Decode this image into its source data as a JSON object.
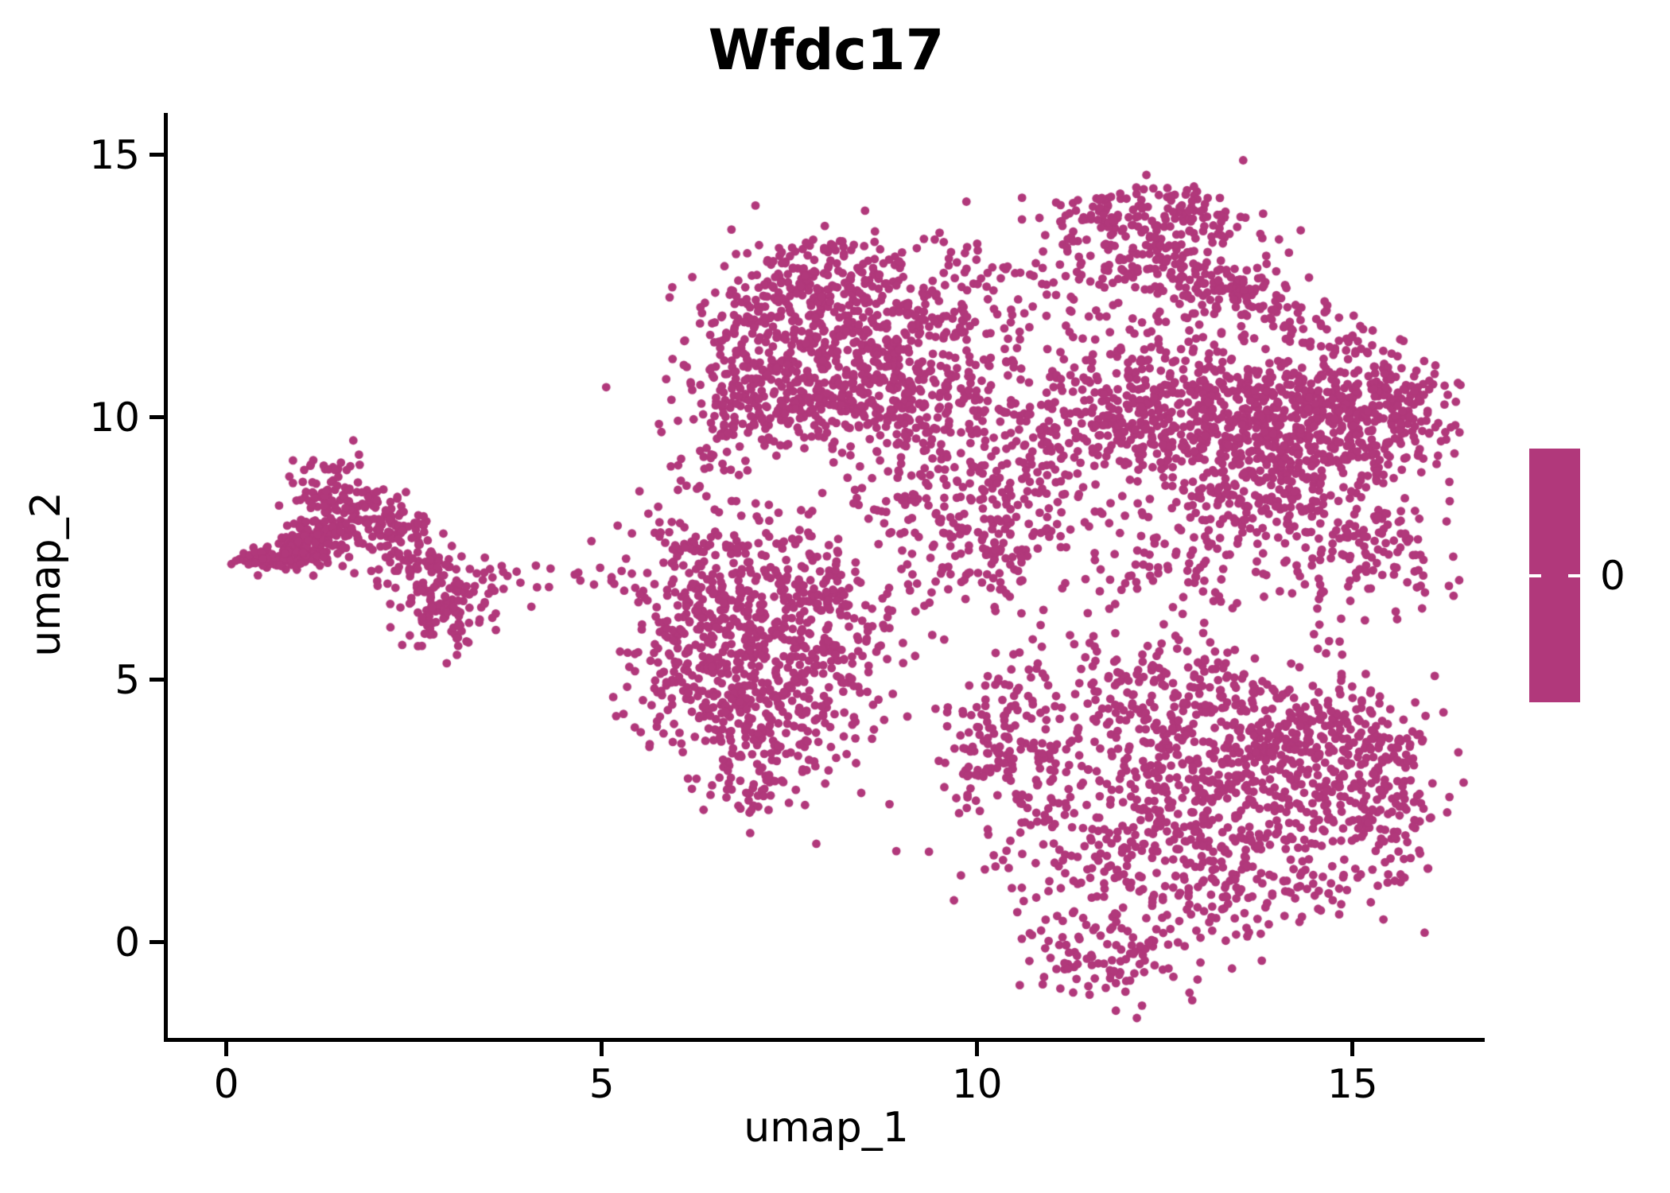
{
  "title": "Wfdc17",
  "axes": {
    "x": {
      "label": "umap_1",
      "ticks": [
        "0",
        "5",
        "10",
        "15"
      ]
    },
    "y": {
      "label": "umap_2",
      "ticks": [
        "0",
        "5",
        "10",
        "15"
      ]
    }
  },
  "legend": {
    "label": "0",
    "color": "#b1387b"
  },
  "chart_data": {
    "type": "scatter",
    "title": "Wfdc17",
    "xlabel": "umap_1",
    "ylabel": "umap_2",
    "x_ticks": [
      0,
      5,
      10,
      15
    ],
    "y_ticks": [
      0,
      5,
      10,
      15
    ],
    "xlim": [
      -0.78,
      16.76
    ],
    "ylim": [
      -1.82,
      15.8
    ],
    "grid": false,
    "legend_position": "right",
    "point_color": "#b1387b",
    "point_radius_px": 5.4,
    "colorbar": {
      "color": "#b1387b",
      "tick_label": "0",
      "tick_fraction": 0.5
    },
    "seed": 42,
    "clip": {
      "x": [
        -0.6,
        16.5
      ],
      "y": [
        -1.65,
        15.6
      ]
    },
    "clusters": [
      {
        "cx": 0.62,
        "cy": 7.32,
        "sx": 0.3,
        "sy": 0.1,
        "n": 90
      },
      {
        "cx": 1.05,
        "cy": 7.55,
        "sx": 0.25,
        "sy": 0.22,
        "n": 75
      },
      {
        "cx": 1.35,
        "cy": 8.35,
        "sx": 0.3,
        "sy": 0.42,
        "n": 120
      },
      {
        "cx": 1.95,
        "cy": 7.95,
        "sx": 0.36,
        "sy": 0.3,
        "n": 110
      },
      {
        "cx": 2.55,
        "cy": 7.3,
        "sx": 0.3,
        "sy": 0.28,
        "n": 60
      },
      {
        "cx": 2.85,
        "cy": 6.35,
        "sx": 0.33,
        "sy": 0.38,
        "n": 110
      },
      {
        "cx": 3.6,
        "cy": 6.9,
        "sx": 0.5,
        "sy": 0.28,
        "n": 26
      },
      {
        "cx": 5.0,
        "cy": 6.95,
        "sx": 0.25,
        "sy": 0.12,
        "n": 10
      },
      {
        "cx": 5.75,
        "cy": 7.5,
        "sx": 0.4,
        "sy": 0.8,
        "n": 30
      },
      {
        "cx": 6.3,
        "cy": 8.9,
        "sx": 0.3,
        "sy": 0.45,
        "n": 25
      },
      {
        "cx": 6.55,
        "cy": 6.2,
        "sx": 0.55,
        "sy": 0.75,
        "n": 200
      },
      {
        "cx": 6.35,
        "cy": 4.8,
        "sx": 0.5,
        "sy": 0.6,
        "n": 130
      },
      {
        "cx": 7.3,
        "cy": 4.2,
        "sx": 0.6,
        "sy": 0.7,
        "n": 170
      },
      {
        "cx": 7.9,
        "cy": 5.6,
        "sx": 0.6,
        "sy": 0.8,
        "n": 170
      },
      {
        "cx": 7.1,
        "cy": 7.2,
        "sx": 0.6,
        "sy": 0.6,
        "n": 130
      },
      {
        "cx": 8.05,
        "cy": 6.55,
        "sx": 0.13,
        "sy": 0.13,
        "n": 30
      },
      {
        "cx": 7.0,
        "cy": 3.0,
        "sx": 0.4,
        "sy": 0.4,
        "n": 45
      },
      {
        "cx": 8.0,
        "cy": 12.55,
        "sx": 0.7,
        "sy": 0.5,
        "n": 230
      },
      {
        "cx": 7.3,
        "cy": 11.6,
        "sx": 0.55,
        "sy": 0.6,
        "n": 150
      },
      {
        "cx": 8.1,
        "cy": 10.35,
        "sx": 1.0,
        "sy": 0.45,
        "n": 330
      },
      {
        "cx": 8.8,
        "cy": 11.4,
        "sx": 0.7,
        "sy": 0.6,
        "n": 160
      },
      {
        "cx": 6.9,
        "cy": 10.2,
        "sx": 0.35,
        "sy": 0.5,
        "n": 80
      },
      {
        "cx": 9.6,
        "cy": 11.7,
        "sx": 0.6,
        "sy": 0.7,
        "n": 90
      },
      {
        "cx": 9.4,
        "cy": 8.6,
        "sx": 0.7,
        "sy": 0.9,
        "n": 170
      },
      {
        "cx": 10.3,
        "cy": 7.6,
        "sx": 0.6,
        "sy": 0.8,
        "n": 120
      },
      {
        "cx": 10.6,
        "cy": 9.3,
        "sx": 0.6,
        "sy": 0.7,
        "n": 110
      },
      {
        "cx": 12.5,
        "cy": 13.7,
        "sx": 0.65,
        "sy": 0.45,
        "n": 170
      },
      {
        "cx": 13.4,
        "cy": 12.3,
        "sx": 0.9,
        "sy": 0.55,
        "rho": -0.75,
        "n": 200
      },
      {
        "cx": 10.9,
        "cy": 12.6,
        "sx": 0.6,
        "sy": 0.6,
        "n": 60
      },
      {
        "cx": 11.6,
        "cy": 13.9,
        "sx": 0.3,
        "sy": 0.25,
        "n": 25
      },
      {
        "cx": 12.3,
        "cy": 10.3,
        "sx": 0.9,
        "sy": 0.75,
        "n": 380
      },
      {
        "cx": 14.3,
        "cy": 9.9,
        "sx": 0.95,
        "sy": 0.65,
        "n": 560
      },
      {
        "cx": 15.4,
        "cy": 10.4,
        "sx": 0.45,
        "sy": 0.55,
        "n": 140
      },
      {
        "cx": 15.1,
        "cy": 7.4,
        "sx": 0.6,
        "sy": 0.75,
        "n": 150
      },
      {
        "cx": 13.6,
        "cy": 8.6,
        "sx": 0.7,
        "sy": 0.5,
        "n": 150
      },
      {
        "cx": 12.7,
        "cy": 7.3,
        "sx": 0.8,
        "sy": 0.6,
        "n": 90
      },
      {
        "cx": 13.4,
        "cy": 2.8,
        "sx": 1.1,
        "sy": 1.1,
        "n": 520
      },
      {
        "cx": 14.6,
        "cy": 3.9,
        "sx": 0.7,
        "sy": 0.6,
        "n": 200
      },
      {
        "cx": 10.35,
        "cy": 3.9,
        "sx": 0.45,
        "sy": 0.65,
        "n": 130
      },
      {
        "cx": 11.2,
        "cy": 2.2,
        "sx": 0.8,
        "sy": 1.0,
        "n": 150
      },
      {
        "cx": 11.7,
        "cy": -0.3,
        "sx": 0.55,
        "sy": 0.45,
        "n": 90
      },
      {
        "cx": 12.3,
        "cy": 4.9,
        "sx": 0.8,
        "sy": 0.5,
        "n": 160
      },
      {
        "cx": 13.0,
        "cy": 0.9,
        "sx": 0.8,
        "sy": 0.5,
        "n": 120
      },
      {
        "cx": 15.3,
        "cy": 2.6,
        "sx": 0.5,
        "sy": 0.9,
        "n": 150
      }
    ]
  }
}
